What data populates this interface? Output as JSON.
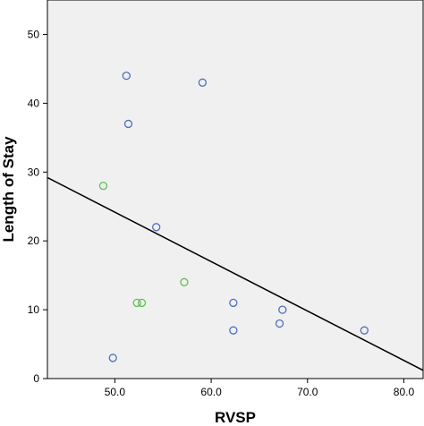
{
  "chart_data": {
    "type": "scatter",
    "xlabel": "RVSP",
    "ylabel": "Length of Stay",
    "xlim": [
      43.0,
      82.0
    ],
    "ylim": [
      0,
      55
    ],
    "xticks": [
      50.0,
      60.0,
      70.0,
      80.0
    ],
    "xtick_labels": [
      "50.0",
      "60.0",
      "70.0",
      "80.0"
    ],
    "yticks": [
      0,
      10,
      20,
      30,
      40,
      50
    ],
    "ytick_labels": [
      "0",
      "10",
      "20",
      "30",
      "40",
      "50"
    ],
    "grid": false,
    "plot_background": "#f0f0f0",
    "series": [
      {
        "color": "#4f6fbf",
        "marker": "open-circle",
        "points": [
          {
            "x": 51.2,
            "y": 44
          },
          {
            "x": 59.1,
            "y": 43
          },
          {
            "x": 51.4,
            "y": 37
          },
          {
            "x": 54.3,
            "y": 22
          },
          {
            "x": 62.3,
            "y": 11
          },
          {
            "x": 67.4,
            "y": 10
          },
          {
            "x": 67.1,
            "y": 8
          },
          {
            "x": 62.3,
            "y": 7
          },
          {
            "x": 75.9,
            "y": 7
          },
          {
            "x": 49.8,
            "y": 3
          }
        ]
      },
      {
        "color": "#5cc050",
        "marker": "open-circle",
        "points": [
          {
            "x": 48.8,
            "y": 28
          },
          {
            "x": 57.2,
            "y": 14
          },
          {
            "x": 52.3,
            "y": 11
          },
          {
            "x": 52.8,
            "y": 11
          }
        ]
      }
    ],
    "fit_line": {
      "color": "#000000",
      "points": [
        {
          "x": 43.0,
          "y": 29.2
        },
        {
          "x": 82.0,
          "y": 1.2
        }
      ]
    }
  }
}
